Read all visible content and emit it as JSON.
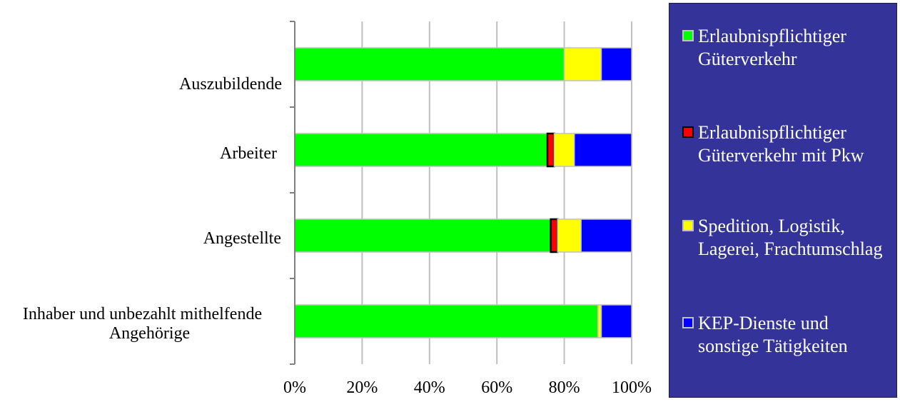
{
  "chart_data": {
    "type": "bar",
    "orientation": "horizontal",
    "stacked": true,
    "percent": true,
    "categories": [
      "Auszubildende",
      "Arbeiter",
      "Angestellte",
      "Inhaber und unbezahlt mithelfende Angehörige"
    ],
    "series": [
      {
        "name": "Erlaubnispflichtiger Güterverkehr",
        "color": "#00ff00",
        "values": [
          80,
          75,
          76,
          90
        ]
      },
      {
        "name": "Erlaubnispflichtiger Güterverkehr mit Pkw",
        "color": "#ff0000",
        "values": [
          0,
          2,
          2,
          0
        ]
      },
      {
        "name": "Spedition, Logistik, Lagerei, Frachtumschlag",
        "color": "#ffff00",
        "values": [
          11,
          6,
          7,
          1
        ]
      },
      {
        "name": "KEP-Dienste und sonstige Tätigkeiten",
        "color": "#0000ff",
        "values": [
          9,
          17,
          15,
          9
        ]
      }
    ],
    "xticks": [
      "0%",
      "20%",
      "40%",
      "60%",
      "80%",
      "100%"
    ],
    "xlim": [
      0,
      100
    ],
    "grid": true,
    "legend_position": "right"
  },
  "labels": {
    "cat0": "Auszubildende",
    "cat1": "Arbeiter",
    "cat2": "Angestellte",
    "cat3a": "Inhaber und unbezahlt mithelfende",
    "cat3b": "Angehörige"
  },
  "legend": [
    {
      "label": "Erlaubnispflichtiger Güterverkehr",
      "color": "#00ff00"
    },
    {
      "label": "Erlaubnispflichtiger Güterverkehr mit Pkw",
      "color": "#ff0000"
    },
    {
      "label": "Spedition, Logistik, Lagerei, Frachtumschlag",
      "color": "#ffff00"
    },
    {
      "label": "KEP-Dienste und sonstige Tätigkeiten",
      "color": "#0000ff"
    }
  ]
}
